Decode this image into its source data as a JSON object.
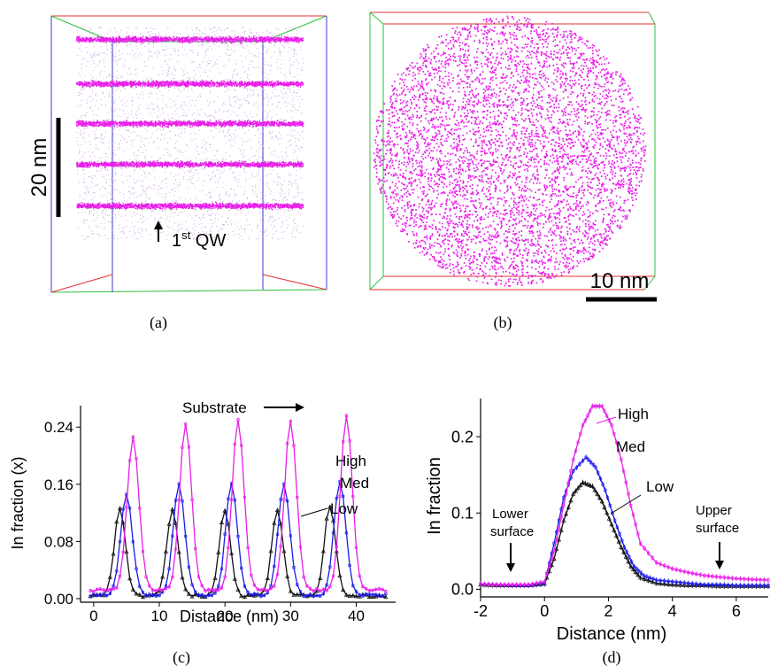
{
  "panels": {
    "a": {
      "caption": "(a)",
      "scalebar": "20 nm",
      "arrow_label": "1",
      "arrow_label_sup": "st",
      "arrow_label_tail": " QW"
    },
    "b": {
      "caption": "(b)",
      "scalebar": "10 nm"
    },
    "c": {
      "caption": "(c)"
    },
    "d": {
      "caption": "(d)"
    }
  },
  "colors": {
    "atoms": "#e81ee8",
    "high": "#e81ee8",
    "med": "#1a1ae8",
    "low": "#111111",
    "box_red": "#e53030",
    "box_green": "#2fbf3f",
    "box_blue": "#3a3ad8"
  },
  "chart_data": [
    {
      "type": "line",
      "panel": "c",
      "xlabel": "Distance (nm)",
      "ylabel": "In fraction (x)",
      "xlim": [
        -2,
        46
      ],
      "ylim": [
        -0.005,
        0.27
      ],
      "xticks": [
        0,
        10,
        20,
        30,
        40
      ],
      "yticks": [
        0.0,
        0.08,
        0.16,
        0.24
      ],
      "ytick_labels": [
        "0.00",
        "0.08",
        "0.16",
        "0.24"
      ],
      "annotation": "Substrate",
      "series": [
        {
          "name": "High",
          "baseline": 0.012,
          "peaks": [
            {
              "x": 6,
              "y": 0.225
            },
            {
              "x": 14,
              "y": 0.245
            },
            {
              "x": 22,
              "y": 0.25
            },
            {
              "x": 30,
              "y": 0.25
            },
            {
              "x": 38.5,
              "y": 0.255
            }
          ],
          "width": 0.9
        },
        {
          "name": "Med",
          "baseline": 0.005,
          "peaks": [
            {
              "x": 5,
              "y": 0.145
            },
            {
              "x": 13,
              "y": 0.16
            },
            {
              "x": 21,
              "y": 0.16
            },
            {
              "x": 29,
              "y": 0.16
            },
            {
              "x": 37.5,
              "y": 0.165
            }
          ],
          "width": 0.9
        },
        {
          "name": "Low",
          "baseline": 0.004,
          "peaks": [
            {
              "x": 4,
              "y": 0.125
            },
            {
              "x": 12,
              "y": 0.125
            },
            {
              "x": 20,
              "y": 0.125
            },
            {
              "x": 28,
              "y": 0.125
            },
            {
              "x": 36,
              "y": 0.13
            }
          ],
          "width": 0.85
        }
      ]
    },
    {
      "type": "line",
      "panel": "d",
      "xlabel": "Distance (nm)",
      "ylabel": "In fraction",
      "xlim": [
        -2,
        7
      ],
      "ylim": [
        -0.01,
        0.25
      ],
      "xticks": [
        -2,
        0,
        2,
        4,
        6
      ],
      "yticks": [
        0.0,
        0.1,
        0.2
      ],
      "ytick_labels": [
        "0.0",
        "0.1",
        "0.2"
      ],
      "annotations": [
        "Lower",
        "surface",
        "Upper",
        "surface"
      ],
      "series": [
        {
          "name": "High",
          "x": [
            -2,
            -1.5,
            -1,
            -0.5,
            0,
            0.3,
            0.6,
            0.9,
            1.2,
            1.5,
            1.8,
            2.1,
            2.4,
            2.7,
            3,
            3.5,
            4,
            4.5,
            5,
            5.5,
            6,
            6.5,
            7
          ],
          "y": [
            0.007,
            0.006,
            0.006,
            0.006,
            0.01,
            0.05,
            0.11,
            0.17,
            0.215,
            0.24,
            0.24,
            0.215,
            0.17,
            0.11,
            0.06,
            0.035,
            0.027,
            0.022,
            0.018,
            0.016,
            0.014,
            0.013,
            0.012
          ]
        },
        {
          "name": "Med",
          "x": [
            -2,
            -1.5,
            -1,
            -0.5,
            0,
            0.3,
            0.6,
            0.9,
            1.3,
            1.6,
            1.9,
            2.2,
            2.5,
            2.8,
            3.1,
            3.5,
            4,
            4.5,
            5,
            5.5,
            6,
            6.5,
            7
          ],
          "y": [
            0.007,
            0.006,
            0.005,
            0.005,
            0.008,
            0.06,
            0.12,
            0.155,
            0.173,
            0.16,
            0.13,
            0.09,
            0.055,
            0.03,
            0.018,
            0.012,
            0.01,
            0.008,
            0.006,
            0.006,
            0.005,
            0.005,
            0.005
          ]
        },
        {
          "name": "Low",
          "x": [
            -2,
            -1.5,
            -1,
            -0.5,
            0,
            0.3,
            0.6,
            0.9,
            1.2,
            1.5,
            1.8,
            2.1,
            2.4,
            2.7,
            3,
            3.5,
            4,
            4.5,
            5,
            5.5,
            6,
            6.5,
            7
          ],
          "y": [
            0.006,
            0.005,
            0.005,
            0.005,
            0.007,
            0.04,
            0.09,
            0.125,
            0.14,
            0.135,
            0.115,
            0.085,
            0.055,
            0.03,
            0.015,
            0.008,
            0.006,
            0.005,
            0.005,
            0.004,
            0.004,
            0.004,
            0.004
          ]
        }
      ]
    }
  ]
}
